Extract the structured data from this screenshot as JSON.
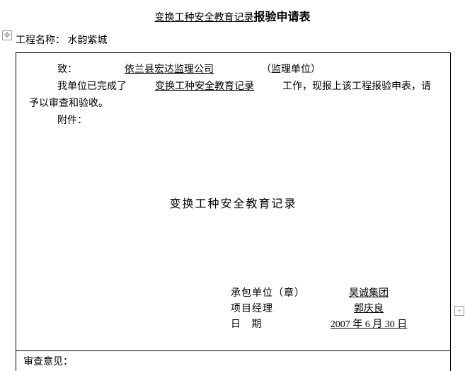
{
  "title": {
    "underlined": "变换工种安全教育记录",
    "bold": "报验申请表"
  },
  "project": {
    "label": "工程名称：",
    "value": "水韵紫城"
  },
  "body": {
    "to_label": "致：",
    "recipient": "依兰县宏达监理公司",
    "unit_type": "（监理单位）",
    "line2_prefix": "我单位已完成了",
    "work_item": "变换工种安全教育记录",
    "line2_suffix1": "工作，现报上该工程报验申表，请",
    "line3": "予以审查和验收。",
    "attachment_label": "附件："
  },
  "center_title": "变换工种安全教育记录",
  "signature": {
    "contractor_label": "承包单位（章）",
    "contractor_value": "昊诚集团",
    "pm_label": "项目经理",
    "pm_value": "郭庆良",
    "date_label": "日   期",
    "date_value": "2007 年 6 月 30 日"
  },
  "review_label": "审查意见："
}
